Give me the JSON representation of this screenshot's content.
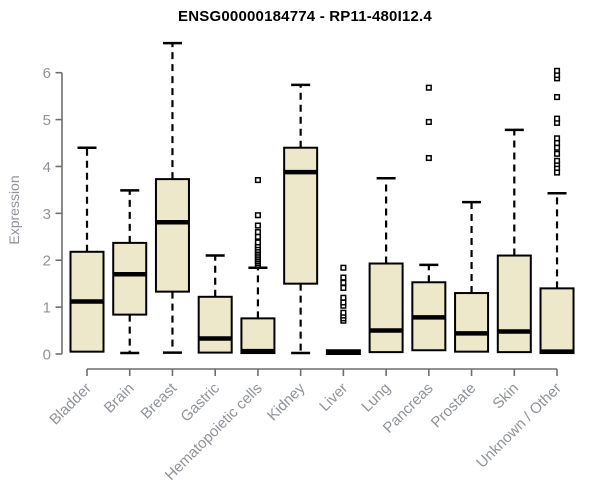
{
  "chart_data": {
    "type": "boxplot",
    "title": "ENSG00000184774 - RP11-480I12.4",
    "ylabel": "Expression",
    "ylim": [
      0,
      6
    ],
    "yticks": [
      "0",
      "1",
      "2",
      "3",
      "4",
      "5",
      "6"
    ],
    "grid": false,
    "legend": "none",
    "colors": {
      "box_fill": "#ede8c9",
      "box_line": "#000000",
      "axis_line": "#6e6e6e",
      "axis_text": "#8f9399",
      "title_text": "#000000"
    },
    "categories": [
      "Bladder",
      "Brain",
      "Breast",
      "Gastric",
      "Hematopoietic cells",
      "Kidney",
      "Liver",
      "Lung",
      "Pancreas",
      "Prostate",
      "Skin",
      "Unknown / Other"
    ],
    "boxes": [
      {
        "category": "Bladder",
        "lo": null,
        "q1": 0.05,
        "median": 1.12,
        "q3": 2.18,
        "hi": 4.4,
        "outliers": []
      },
      {
        "category": "Brain",
        "lo": 0.02,
        "q1": 0.84,
        "median": 1.7,
        "q3": 2.37,
        "hi": 3.49,
        "outliers": []
      },
      {
        "category": "Breast",
        "lo": 0.03,
        "q1": 1.33,
        "median": 2.81,
        "q3": 3.73,
        "hi": 6.63,
        "outliers": []
      },
      {
        "category": "Gastric",
        "lo": null,
        "q1": 0.03,
        "median": 0.33,
        "q3": 1.22,
        "hi": 2.1,
        "outliers": []
      },
      {
        "category": "Hematopoietic cells",
        "lo": null,
        "q1": 0.02,
        "median": 0.06,
        "q3": 0.76,
        "hi": 1.84,
        "outliers": [
          1.9,
          1.94,
          1.98,
          2.02,
          2.06,
          2.1,
          2.14,
          2.18,
          2.22,
          2.27,
          2.32,
          2.38,
          2.5,
          2.6,
          2.74,
          2.96,
          3.71
        ]
      },
      {
        "category": "Kidney",
        "lo": 0.02,
        "q1": 1.5,
        "median": 3.88,
        "q3": 4.4,
        "hi": 5.74,
        "outliers": []
      },
      {
        "category": "Liver",
        "lo": null,
        "q1": 0.0,
        "median": 0.04,
        "q3": 0.08,
        "hi": null,
        "outliers": [
          0.71,
          0.76,
          0.82,
          0.88,
          1.03,
          1.1,
          1.2,
          1.41,
          1.52,
          1.63,
          1.84
        ]
      },
      {
        "category": "Lung",
        "lo": null,
        "q1": 0.04,
        "median": 0.5,
        "q3": 1.93,
        "hi": 3.75,
        "outliers": []
      },
      {
        "category": "Pancreas",
        "lo": null,
        "q1": 0.08,
        "median": 0.78,
        "q3": 1.53,
        "hi": 1.9,
        "outliers": [
          4.18,
          4.95,
          5.68
        ]
      },
      {
        "category": "Prostate",
        "lo": null,
        "q1": 0.05,
        "median": 0.44,
        "q3": 1.3,
        "hi": 3.24,
        "outliers": []
      },
      {
        "category": "Skin",
        "lo": null,
        "q1": 0.04,
        "median": 0.48,
        "q3": 2.1,
        "hi": 4.78,
        "outliers": []
      },
      {
        "category": "Unknown / Other",
        "lo": null,
        "q1": 0.02,
        "median": 0.05,
        "q3": 1.4,
        "hi": 3.43,
        "outliers": [
          3.87,
          3.97,
          4.05,
          4.12,
          4.27,
          4.4,
          4.5,
          4.6,
          4.93,
          5.02,
          5.48,
          5.88,
          5.95,
          6.04
        ]
      }
    ]
  }
}
